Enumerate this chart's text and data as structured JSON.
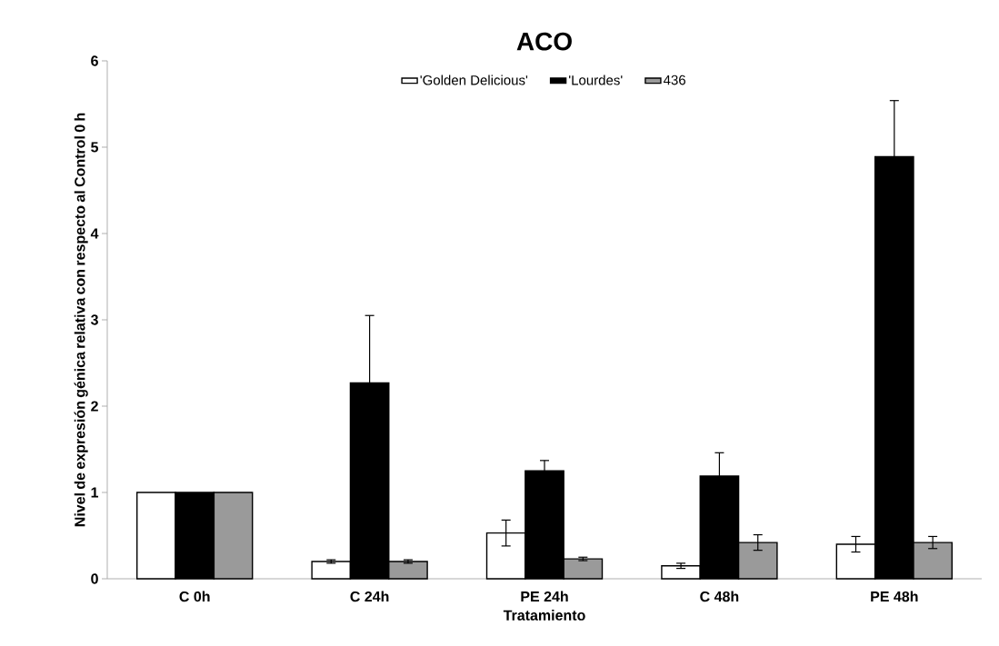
{
  "chart_data": {
    "type": "bar",
    "title": "ACO",
    "xlabel": "Tratamiento",
    "ylabel": "Nivel de expresión génica relativa con respecto al Control 0 h",
    "categories": [
      "C 0h",
      "C 24h",
      "PE 24h",
      "C 48h",
      "PE 48h"
    ],
    "series": [
      {
        "name": "'Golden Delicious'",
        "color": "#ffffff",
        "values": [
          1,
          0.2,
          0.53,
          0.15,
          0.4
        ],
        "errors": [
          null,
          0.02,
          0.15,
          0.03,
          0.09
        ]
      },
      {
        "name": "'Lourdes'",
        "color": "#000000",
        "values": [
          1,
          2.27,
          1.25,
          1.19,
          4.89
        ],
        "errors": [
          null,
          0.78,
          0.12,
          0.27,
          0.65
        ]
      },
      {
        "name": "436",
        "color": "#9a9a9a",
        "values": [
          1,
          0.2,
          0.23,
          0.42,
          0.42
        ],
        "errors": [
          null,
          0.02,
          0.02,
          0.09,
          0.07
        ]
      }
    ],
    "ylim": [
      0,
      6
    ],
    "yticks": [
      0,
      1,
      2,
      3,
      4,
      5,
      6
    ],
    "grid": false,
    "legend": "top"
  }
}
